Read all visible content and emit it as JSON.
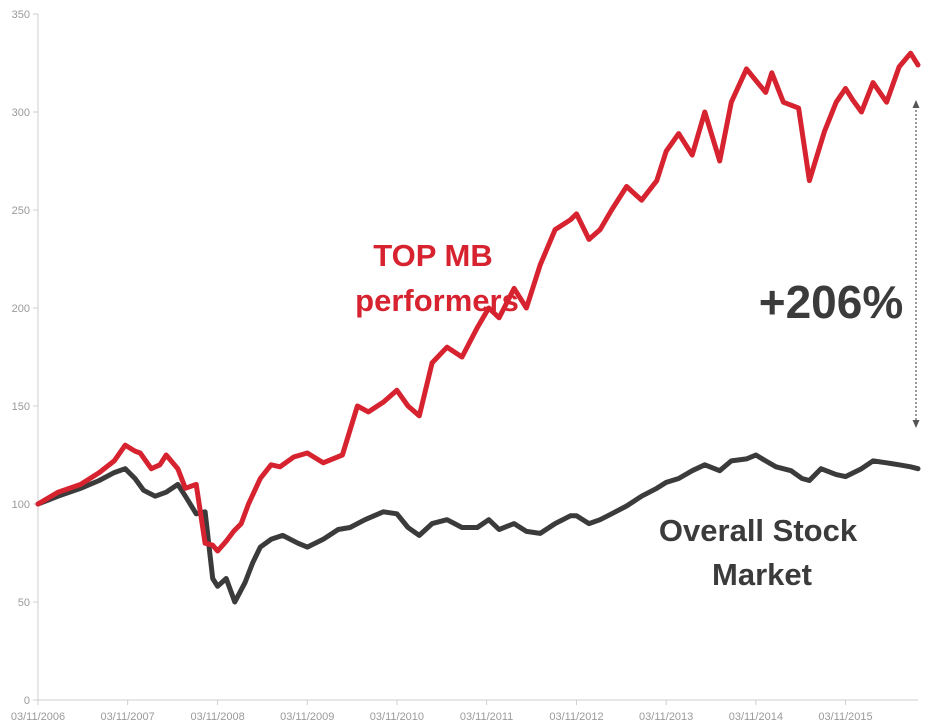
{
  "chart_data": {
    "type": "line",
    "title": "",
    "xlabel": "",
    "ylabel": "",
    "ylim": [
      0,
      350
    ],
    "yticks": [
      0,
      50,
      100,
      150,
      200,
      250,
      300,
      350
    ],
    "xticks": [
      "03/11/2006",
      "03/11/2007",
      "03/11/2008",
      "03/11/2009",
      "03/11/2010",
      "03/11/2011",
      "03/11/2012",
      "03/11/2013",
      "03/11/2014",
      "03/11/2015"
    ],
    "xlim": [
      "03/11/2006",
      "12/31/2015"
    ],
    "grid": false,
    "series": [
      {
        "name": "TOP MB performers",
        "color": "#d6232f",
        "x": [
          "03/11/2006",
          "06/01/2006",
          "09/01/2006",
          "11/15/2006",
          "01/15/2007",
          "03/01/2007",
          "04/10/2007",
          "05/01/2007",
          "06/15/2007",
          "07/20/2007",
          "08/15/2007",
          "10/01/2007",
          "11/01/2007",
          "12/15/2007",
          "01/20/2008",
          "02/20/2008",
          "03/11/2008",
          "04/15/2008",
          "05/15/2008",
          "06/15/2008",
          "07/15/2008",
          "09/01/2008",
          "10/15/2008",
          "11/20/2008",
          "01/15/2009",
          "03/11/2009",
          "05/15/2009",
          "08/01/2009",
          "10/01/2009",
          "11/15/2009",
          "01/15/2010",
          "03/11/2010",
          "04/25/2010",
          "06/10/2010",
          "08/01/2010",
          "10/01/2010",
          "12/01/2010",
          "02/01/2011",
          "03/20/2011",
          "05/01/2011",
          "07/01/2011",
          "08/20/2011",
          "10/15/2011",
          "12/15/2011",
          "02/15/2012",
          "03/11/2012",
          "05/01/2012",
          "06/15/2012",
          "08/01/2012",
          "10/01/2012",
          "12/01/2012",
          "02/01/2013",
          "03/11/2013",
          "05/01/2013",
          "06/25/2013",
          "08/15/2013",
          "10/15/2013",
          "12/01/2013",
          "02/01/2014",
          "03/11/2014",
          "04/20/2014",
          "05/15/2014",
          "07/01/2014",
          "09/01/2014",
          "10/15/2014",
          "12/15/2014",
          "02/01/2015",
          "03/11/2015",
          "04/10/2015",
          "05/15/2015",
          "07/01/2015",
          "08/25/2015",
          "10/15/2015",
          "12/01/2015",
          "12/31/2015"
        ],
        "values": [
          100,
          106,
          110,
          116,
          122,
          130,
          127,
          126,
          118,
          120,
          125,
          118,
          108,
          110,
          80,
          79,
          76,
          81,
          86,
          90,
          100,
          113,
          120,
          119,
          124,
          126,
          121,
          125,
          150,
          147,
          152,
          158,
          150,
          145,
          172,
          180,
          175,
          190,
          200,
          195,
          210,
          200,
          222,
          240,
          245,
          248,
          235,
          240,
          250,
          262,
          255,
          265,
          280,
          289,
          278,
          300,
          275,
          305,
          322,
          316,
          310,
          320,
          305,
          302,
          265,
          290,
          305,
          312,
          306,
          300,
          315,
          305,
          323,
          330,
          324
        ]
      },
      {
        "name": "Overall Stock Market",
        "color": "#3b3b3b",
        "x": [
          "03/11/2006",
          "06/01/2006",
          "09/01/2006",
          "11/15/2006",
          "01/15/2007",
          "03/01/2007",
          "04/10/2007",
          "05/15/2007",
          "07/01/2007",
          "08/15/2007",
          "10/01/2007",
          "11/01/2007",
          "12/15/2007",
          "01/20/2008",
          "02/20/2008",
          "03/11/2008",
          "04/15/2008",
          "05/20/2008",
          "07/01/2008",
          "08/01/2008",
          "09/01/2008",
          "10/15/2008",
          "12/01/2008",
          "02/01/2009",
          "03/11/2009",
          "05/15/2009",
          "07/15/2009",
          "09/01/2009",
          "11/01/2009",
          "01/15/2010",
          "03/11/2010",
          "04/25/2010",
          "06/10/2010",
          "08/01/2010",
          "10/01/2010",
          "12/01/2010",
          "02/01/2011",
          "03/20/2011",
          "05/01/2011",
          "07/01/2011",
          "08/20/2011",
          "10/15/2011",
          "12/15/2011",
          "02/15/2012",
          "03/11/2012",
          "05/01/2012",
          "06/15/2012",
          "08/01/2012",
          "10/01/2012",
          "12/01/2012",
          "02/01/2013",
          "03/11/2013",
          "05/01/2013",
          "06/25/2013",
          "08/15/2013",
          "10/15/2013",
          "12/01/2013",
          "02/01/2014",
          "03/11/2014",
          "04/20/2014",
          "06/01/2014",
          "08/01/2014",
          "09/15/2014",
          "10/15/2014",
          "12/01/2014",
          "02/01/2015",
          "03/11/2015",
          "05/15/2015",
          "07/01/2015",
          "08/25/2015",
          "10/15/2015",
          "12/01/2015",
          "12/31/2015"
        ],
        "values": [
          100,
          104,
          108,
          112,
          116,
          118,
          113,
          107,
          104,
          106,
          110,
          104,
          95,
          96,
          62,
          58,
          62,
          50,
          60,
          70,
          78,
          82,
          84,
          80,
          78,
          82,
          87,
          88,
          92,
          96,
          95,
          88,
          84,
          90,
          92,
          88,
          88,
          92,
          87,
          90,
          86,
          85,
          90,
          94,
          94,
          90,
          92,
          95,
          99,
          104,
          108,
          111,
          113,
          117,
          120,
          117,
          122,
          123,
          125,
          122,
          119,
          117,
          113,
          112,
          118,
          115,
          114,
          118,
          122,
          121,
          120,
          119,
          118
        ]
      }
    ],
    "annotations": {
      "red_label_line1": "TOP MB",
      "red_label_line2": "performers",
      "dark_label_line1": "Overall Stock",
      "dark_label_line2": "Market",
      "gap_label": "+206%"
    }
  }
}
